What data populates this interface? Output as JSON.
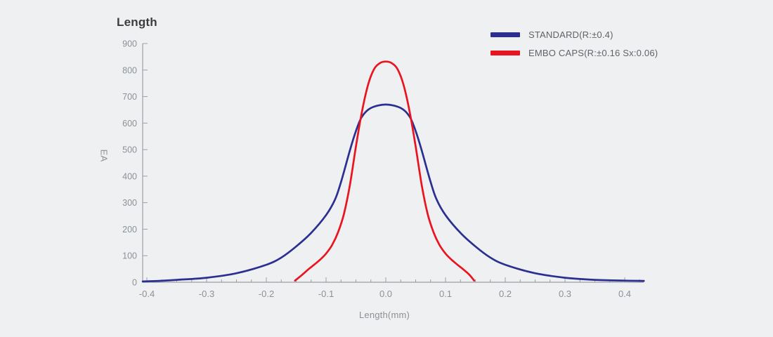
{
  "title": "Length",
  "legend": {
    "items": [
      {
        "label": "STANDARD(R:±0.4)",
        "color": "#2b2f90",
        "series": "standard"
      },
      {
        "label": "EMBO CAPS(R:±0.16 Sx:0.06)",
        "color": "#e9141f",
        "series": "embo-caps"
      }
    ]
  },
  "chart_data": {
    "type": "line",
    "title": "Length",
    "xlabel": "Length(mm)",
    "ylabel": "EA",
    "xlim": [
      -0.407,
      0.432
    ],
    "ylim": [
      0,
      900
    ],
    "grid": false,
    "legend_position": "top-right",
    "x_tick_values": [
      -0.4,
      -0.3,
      -0.2,
      -0.1,
      0.0,
      0.1,
      0.2,
      0.3,
      0.4
    ],
    "x_tick_labels": [
      "-0.4",
      "-0.3",
      "-0.2",
      "-0.1",
      "0.0",
      "0.1",
      "0.2",
      "0.3",
      "0.4"
    ],
    "x_minor_tick_step": 0.025,
    "y_tick_values": [
      0,
      100,
      200,
      300,
      400,
      500,
      600,
      700,
      800,
      900
    ],
    "y_tick_labels": [
      "0",
      "100",
      "200",
      "300",
      "400",
      "500",
      "600",
      "700",
      "800",
      "900"
    ],
    "series": [
      {
        "name": "STANDARD(R:±0.4)",
        "color": "#2b2f90",
        "peak": 670,
        "points": [
          [
            -0.407,
            3
          ],
          [
            -0.38,
            5
          ],
          [
            -0.35,
            9
          ],
          [
            -0.3,
            17
          ],
          [
            -0.25,
            34
          ],
          [
            -0.2,
            66
          ],
          [
            -0.175,
            93
          ],
          [
            -0.15,
            135
          ],
          [
            -0.125,
            186
          ],
          [
            -0.1,
            253
          ],
          [
            -0.085,
            312
          ],
          [
            -0.075,
            378
          ],
          [
            -0.06,
            498
          ],
          [
            -0.05,
            570
          ],
          [
            -0.04,
            624
          ],
          [
            -0.025,
            657
          ],
          [
            0.0,
            670
          ],
          [
            0.025,
            657
          ],
          [
            0.04,
            624
          ],
          [
            0.05,
            570
          ],
          [
            0.06,
            498
          ],
          [
            0.075,
            378
          ],
          [
            0.085,
            312
          ],
          [
            0.1,
            253
          ],
          [
            0.125,
            186
          ],
          [
            0.15,
            135
          ],
          [
            0.175,
            93
          ],
          [
            0.2,
            66
          ],
          [
            0.25,
            34
          ],
          [
            0.3,
            17
          ],
          [
            0.35,
            9
          ],
          [
            0.4,
            6
          ],
          [
            0.432,
            5
          ]
        ]
      },
      {
        "name": "EMBO CAPS(R:±0.16 Sx:0.06)",
        "color": "#e9141f",
        "peak": 832,
        "points": [
          [
            -0.152,
            6
          ],
          [
            -0.14,
            28
          ],
          [
            -0.13,
            48
          ],
          [
            -0.12,
            66
          ],
          [
            -0.11,
            85
          ],
          [
            -0.1,
            108
          ],
          [
            -0.09,
            140
          ],
          [
            -0.08,
            188
          ],
          [
            -0.07,
            258
          ],
          [
            -0.06,
            368
          ],
          [
            -0.05,
            512
          ],
          [
            -0.04,
            642
          ],
          [
            -0.03,
            742
          ],
          [
            -0.02,
            802
          ],
          [
            -0.01,
            826
          ],
          [
            0.0,
            832
          ],
          [
            0.01,
            826
          ],
          [
            0.02,
            802
          ],
          [
            0.03,
            742
          ],
          [
            0.04,
            642
          ],
          [
            0.05,
            512
          ],
          [
            0.06,
            368
          ],
          [
            0.07,
            258
          ],
          [
            0.08,
            188
          ],
          [
            0.09,
            140
          ],
          [
            0.1,
            108
          ],
          [
            0.11,
            85
          ],
          [
            0.12,
            66
          ],
          [
            0.13,
            48
          ],
          [
            0.14,
            28
          ],
          [
            0.148,
            6
          ]
        ]
      }
    ]
  },
  "colors": {
    "background": "#eff0f2",
    "axis": "#9ba0a6",
    "tick_text": "#8c9196",
    "title_text": "#3b3e41",
    "legend_text": "#5f6368"
  }
}
